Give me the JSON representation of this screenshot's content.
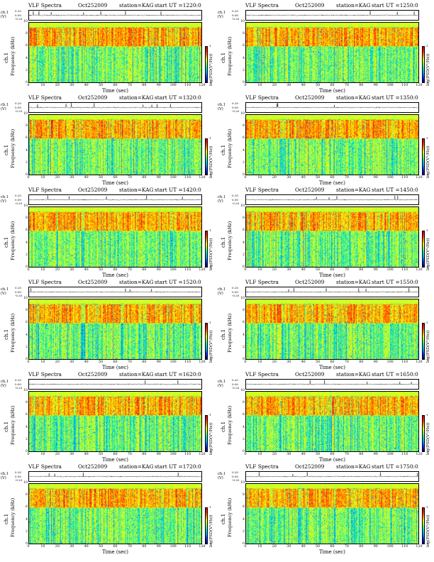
{
  "common": {
    "title": "VLF Spectra",
    "date": "Oct252009",
    "station": "station=KAG",
    "ch_label": "ch.1 (V)",
    "ts_ticks": [
      "0.20",
      "0.00",
      "-0.20"
    ],
    "ylabel_ch": "ch.1",
    "ylabel": "Frequency (kHz)",
    "xlabel": "Time (sec)",
    "cbar_label": "log(PSD(V²/Hz))",
    "cbar_ticks": [
      "-1",
      "-7"
    ]
  },
  "chart_data": {
    "type": "heatmap",
    "x_range": [
      0,
      120
    ],
    "x_ticks": [
      "0",
      "10",
      "20",
      "30",
      "40",
      "50",
      "60",
      "70",
      "80",
      "90",
      "100",
      "110",
      "120"
    ],
    "y_range": [
      0,
      10
    ],
    "y_ticks": [
      "0",
      "2",
      "4",
      "6",
      "8",
      "10"
    ],
    "colormap": [
      "#000080",
      "#0030ff",
      "#00a0ff",
      "#00e0c0",
      "#80ff60",
      "#ffff00",
      "#ff9000",
      "#ff2000",
      "#c00000"
    ],
    "panels": [
      {
        "start": "start UT =1220:0"
      },
      {
        "start": "start UT =1250:0"
      },
      {
        "start": "start UT =1320:0"
      },
      {
        "start": "start UT =1350:0"
      },
      {
        "start": "start UT =1420:0"
      },
      {
        "start": "start UT =1450:0"
      },
      {
        "start": "start UT =1520:0"
      },
      {
        "start": "start UT =1550:0"
      },
      {
        "start": "start UT =1620:0"
      },
      {
        "start": "start UT =1650:0"
      },
      {
        "start": "start UT =1720:0"
      },
      {
        "start": "start UT =1750:0"
      }
    ]
  }
}
